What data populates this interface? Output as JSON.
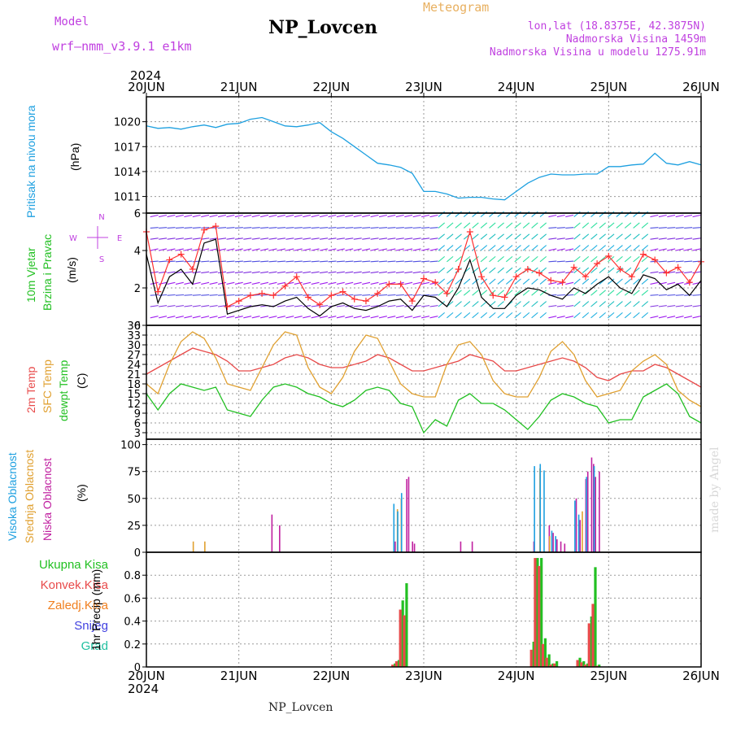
{
  "header": {
    "model_label": "Model",
    "model_name": "wrf–nmm_v3.9.1 e1km",
    "title": "NP_Lovcen",
    "meteogram_label": "Meteogram",
    "lonlat": "lon,lat (18.8375E, 42.3875N)",
    "altitude": "Nadmorska Visina 1459m",
    "model_altitude": "Nadmorska Visina u modelu 1275.91m",
    "year_top": "2024",
    "year_bottom": "2024",
    "footer": "NP_Lovcen",
    "watermark": "made by Angel"
  },
  "colors": {
    "pressure": "#1ea0e0",
    "wind_speed": "#000000",
    "wind_gust": "#ff3030",
    "temp2m": "#e84a4a",
    "sfc_temp": "#e0a030",
    "dewpt": "#22c022",
    "cloud_high": "#1ea0e0",
    "cloud_mid": "#e0a030",
    "cloud_low": "#c020a0",
    "precip_total": "#22c022",
    "precip_conv": "#e84a4a",
    "precip_frozen": "#f08020",
    "snow": "#4040e0",
    "hail": "#20c0a0",
    "axis_label_purple": "#c040e0"
  },
  "chart_data": [
    {
      "type": "line",
      "id": "pressure",
      "ylabel_main": "Pritisak na nivou mora",
      "ylabel_unit": "(hPa)",
      "ylim": [
        1009,
        1023
      ],
      "yticks": [
        "1011",
        "1014",
        "1017",
        "1020"
      ],
      "x_days": [
        "20JUN",
        "21JUN",
        "22JUN",
        "23JUN",
        "24JUN",
        "25JUN",
        "26JUN"
      ],
      "grid": true,
      "x_hours": [
        0,
        3,
        6,
        9,
        12,
        15,
        18,
        21,
        24,
        27,
        30,
        33,
        36,
        39,
        42,
        45,
        48,
        51,
        54,
        57,
        60,
        63,
        66,
        69,
        72,
        75,
        78,
        81,
        84,
        87,
        90,
        93,
        96,
        99,
        102,
        105,
        108,
        111,
        114,
        117,
        120,
        123,
        126,
        129,
        132,
        135,
        138,
        141,
        144
      ],
      "values": [
        1019.5,
        1019.2,
        1019.3,
        1019.1,
        1019.4,
        1019.6,
        1019.3,
        1019.7,
        1019.8,
        1020.3,
        1020.5,
        1020.0,
        1019.5,
        1019.4,
        1019.6,
        1019.9,
        1018.8,
        1018.0,
        1017.0,
        1016.0,
        1015.0,
        1014.8,
        1014.5,
        1013.8,
        1011.6,
        1011.6,
        1011.3,
        1010.8,
        1010.9,
        1010.9,
        1010.7,
        1010.6,
        1011.6,
        1012.6,
        1013.3,
        1013.7,
        1013.6,
        1013.6,
        1013.7,
        1013.7,
        1014.6,
        1014.6,
        1014.8,
        1014.9,
        1016.2,
        1015.0,
        1014.8,
        1015.2,
        1014.8
      ]
    },
    {
      "type": "line",
      "id": "wind",
      "ylabel_main": "10m Vjetar",
      "ylabel_sub": "Brzina i Pravac",
      "ylabel_unit": "(m/s)",
      "compass": {
        "n": "N",
        "s": "S",
        "e": "E",
        "w": "W"
      },
      "ylim": [
        0,
        6
      ],
      "yticks": [
        "0",
        "2",
        "4",
        "6"
      ],
      "grid": true,
      "x_hours": [
        0,
        3,
        6,
        9,
        12,
        15,
        18,
        21,
        24,
        27,
        30,
        33,
        36,
        39,
        42,
        45,
        48,
        51,
        54,
        57,
        60,
        63,
        66,
        69,
        72,
        75,
        78,
        81,
        84,
        87,
        90,
        93,
        96,
        99,
        102,
        105,
        108,
        111,
        114,
        117,
        120,
        123,
        126,
        129,
        132,
        135,
        138,
        141,
        144
      ],
      "series": [
        {
          "values": [
            3.8,
            1.2,
            2.6,
            3.0,
            2.2,
            4.4,
            4.6,
            0.6,
            0.8,
            1.0,
            1.1,
            1.0,
            1.3,
            1.5,
            0.9,
            0.5,
            1.0,
            1.2,
            0.9,
            0.8,
            1.0,
            1.3,
            1.4,
            0.8,
            1.6,
            1.5,
            1.0,
            2.0,
            3.5,
            1.5,
            0.9,
            0.9,
            1.6,
            2.0,
            1.9,
            1.6,
            1.4,
            2.0,
            1.7,
            2.2,
            2.6,
            2.0,
            1.7,
            2.7,
            2.5,
            1.9,
            2.2,
            1.6,
            2.4
          ]
        },
        {
          "values": [
            5.0,
            1.8,
            3.5,
            3.8,
            3.0,
            5.1,
            5.3,
            1.0,
            1.3,
            1.6,
            1.7,
            1.6,
            2.1,
            2.6,
            1.5,
            1.1,
            1.6,
            1.8,
            1.4,
            1.3,
            1.7,
            2.2,
            2.2,
            1.3,
            2.5,
            2.3,
            1.7,
            3.0,
            5.0,
            2.6,
            1.6,
            1.5,
            2.6,
            3.0,
            2.8,
            2.4,
            2.3,
            3.1,
            2.6,
            3.3,
            3.7,
            3.0,
            2.6,
            3.8,
            3.5,
            2.8,
            3.1,
            2.3,
            3.4
          ]
        }
      ]
    },
    {
      "type": "line",
      "id": "temperature",
      "ylabel_a": "2m Temp",
      "ylabel_b": "SFC Temp",
      "ylabel_c": "dewpt Temp",
      "ylabel_unit": "(C)",
      "ylim": [
        1,
        36
      ],
      "yticks": [
        "3",
        "6",
        "9",
        "12",
        "15",
        "18",
        "21",
        "24",
        "27",
        "30",
        "33",
        "36"
      ],
      "grid": true,
      "x_hours": [
        0,
        3,
        6,
        9,
        12,
        15,
        18,
        21,
        24,
        27,
        30,
        33,
        36,
        39,
        42,
        45,
        48,
        51,
        54,
        57,
        60,
        63,
        66,
        69,
        72,
        75,
        78,
        81,
        84,
        87,
        90,
        93,
        96,
        99,
        102,
        105,
        108,
        111,
        114,
        117,
        120,
        123,
        126,
        129,
        132,
        135,
        138,
        141,
        144
      ],
      "series": [
        {
          "values": [
            21,
            23,
            25,
            27,
            29,
            28,
            27,
            25,
            22,
            22,
            23,
            24,
            26,
            27,
            26,
            24,
            23,
            23,
            24,
            25,
            27,
            26,
            24,
            22,
            22,
            23,
            24,
            25,
            27,
            26,
            25,
            22,
            22,
            23,
            24,
            25,
            26,
            25,
            23,
            20,
            19,
            21,
            22,
            22,
            24,
            23,
            21,
            19,
            17
          ]
        },
        {
          "values": [
            18,
            15,
            24,
            31,
            34,
            32,
            26,
            18,
            17,
            16,
            23,
            30,
            34,
            33,
            23,
            17,
            15,
            20,
            28,
            33,
            32,
            25,
            18,
            15,
            14,
            14,
            24,
            30,
            31,
            27,
            19,
            15,
            14,
            14,
            20,
            28,
            31,
            27,
            19,
            14,
            15,
            16,
            22,
            25,
            27,
            24,
            16,
            13,
            11
          ]
        },
        {
          "values": [
            15,
            10,
            15,
            18,
            17,
            16,
            17,
            10,
            9,
            8,
            13,
            17,
            18,
            17,
            15,
            14,
            12,
            11,
            13,
            16,
            17,
            16,
            12,
            11,
            3,
            7,
            5,
            13,
            15,
            12,
            12,
            10,
            7,
            4,
            8,
            13,
            15,
            14,
            12,
            11,
            6,
            7,
            7,
            14,
            16,
            18,
            15,
            8,
            6
          ]
        }
      ]
    },
    {
      "type": "bar",
      "id": "clouds",
      "ylabel_a": "Visoka Oblacnost",
      "ylabel_b": "Srednja Oblacnost",
      "ylabel_c": "Niska Oblacnost",
      "ylabel_unit": "(%)",
      "ylim": [
        0,
        105
      ],
      "yticks": [
        "0",
        "25",
        "50",
        "75",
        "100"
      ],
      "grid": true,
      "x_hours": [
        12,
        15,
        32,
        34,
        64,
        64.5,
        65,
        65.5,
        66,
        66.5,
        67,
        67.5,
        68,
        68.5,
        69,
        81,
        84,
        100,
        101,
        102,
        102.5,
        103,
        103.5,
        104,
        104.5,
        105,
        105.5,
        106,
        106.5,
        107,
        108,
        111,
        111.5,
        112,
        112.5,
        113,
        113.5,
        114,
        114.5,
        115,
        115.5,
        116,
        116.5,
        117
      ],
      "series": [
        {
          "values": [
            0,
            0,
            0,
            0,
            0,
            45,
            0,
            38,
            0,
            55,
            0,
            0,
            0,
            0,
            0,
            0,
            0,
            0,
            80,
            0,
            82,
            0,
            76,
            0,
            0,
            0,
            20,
            0,
            15,
            0,
            0,
            0,
            48,
            0,
            35,
            0,
            0,
            0,
            70,
            0,
            0,
            0,
            80,
            0
          ]
        },
        {
          "values": [
            10,
            10,
            0,
            0,
            0,
            0,
            40,
            0,
            50,
            0,
            0,
            0,
            0,
            0,
            0,
            0,
            0,
            0,
            0,
            78,
            0,
            0,
            0,
            0,
            15,
            0,
            0,
            0,
            0,
            0,
            0,
            0,
            0,
            0,
            0,
            38,
            0,
            0,
            0,
            0,
            0,
            0,
            0,
            0
          ]
        },
        {
          "values": [
            0,
            0,
            35,
            25,
            10,
            0,
            0,
            0,
            0,
            0,
            68,
            70,
            0,
            10,
            8,
            10,
            10,
            10,
            0,
            0,
            0,
            0,
            0,
            25,
            0,
            18,
            0,
            12,
            0,
            10,
            8,
            50,
            0,
            30,
            0,
            0,
            68,
            75,
            0,
            88,
            82,
            70,
            0,
            75
          ]
        }
      ]
    },
    {
      "type": "bar",
      "id": "precipitation",
      "legend": [
        "Ukupna Kisa",
        "Konvek.Kisa",
        "Zaledj.Kisa",
        "Snijeg",
        "Grad"
      ],
      "ylabel_unit": "1hr Precip (mm)",
      "ylim": [
        0,
        1.0
      ],
      "yticks": [
        "0",
        "0.2",
        "0.4",
        "0.6",
        "0.8"
      ],
      "grid": true,
      "x_hours": [
        64,
        65,
        66,
        67,
        100,
        101,
        102,
        103,
        104,
        105,
        106,
        112,
        113,
        114,
        115,
        116,
        117
      ],
      "series": [
        {
          "values": [
            0.03,
            0.06,
            0.58,
            0.73,
            0.22,
            0.95,
            0.95,
            0.25,
            0.11,
            0.03,
            0.05,
            0.08,
            0.05,
            0.03,
            0.44,
            0.87,
            0.02
          ]
        },
        {
          "values": [
            0.02,
            0.05,
            0.5,
            0.45,
            0.15,
            0.95,
            0.88,
            0.2,
            0.08,
            0.02,
            0.03,
            0.06,
            0.04,
            0.02,
            0.38,
            0.55,
            0.01
          ]
        }
      ]
    }
  ]
}
